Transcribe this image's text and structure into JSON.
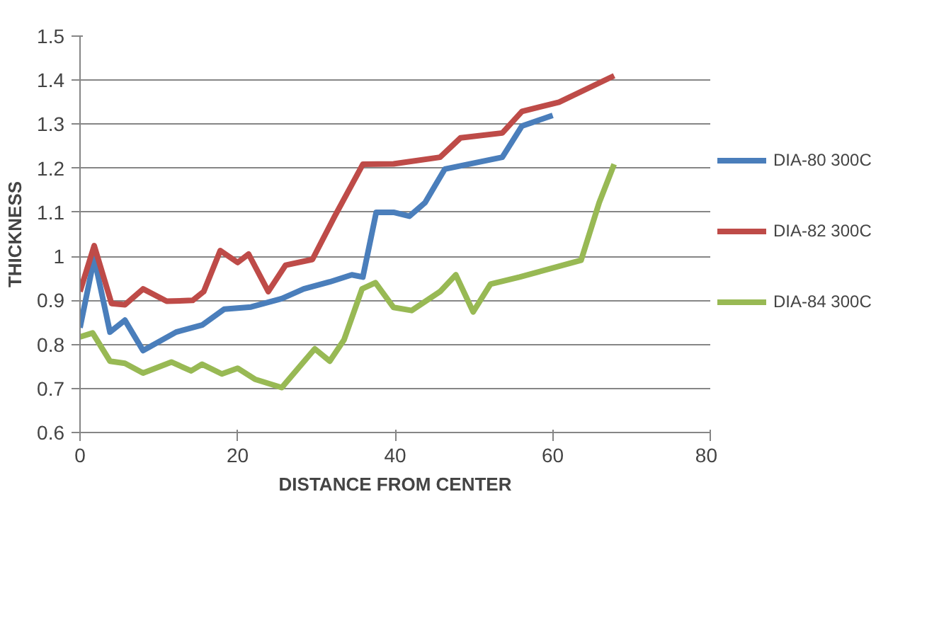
{
  "chart_data": {
    "type": "line",
    "xlabel": "DISTANCE FROM CENTER",
    "ylabel": "THICKNESS",
    "xlim": [
      0,
      80
    ],
    "xticks": [
      0,
      20,
      40,
      60,
      80
    ],
    "ylim": [
      0.6,
      1.5
    ],
    "yticks": [
      0.6,
      0.7,
      0.8,
      0.9,
      1,
      1.1,
      1.2,
      1.3,
      1.4,
      1.5
    ],
    "grid": "y",
    "legend": "right",
    "marker": "none",
    "line_style": "solid",
    "series": [
      {
        "name": "DIA-80 300C",
        "color": "#4a7ebb",
        "x": [
          0,
          1.8,
          3.8,
          5.7,
          8,
          12.2,
          15.5,
          18.3,
          21.7,
          25.6,
          28.4,
          31.7,
          34.5,
          35.9,
          37.6,
          39.8,
          41.8,
          43.8,
          46.3,
          53.6,
          56.1,
          60
        ],
        "values": [
          0.838,
          0.996,
          0.828,
          0.855,
          0.786,
          0.828,
          0.844,
          0.88,
          0.885,
          0.904,
          0.926,
          0.942,
          0.958,
          0.953,
          1.1,
          1.1,
          1.091,
          1.122,
          1.198,
          1.225,
          1.296,
          1.32
        ]
      },
      {
        "name": "DIA-82 300C",
        "color": "#be4b48",
        "x": [
          0,
          1.8,
          4,
          5.7,
          8,
          11,
          14.3,
          15.7,
          17.8,
          20,
          21.4,
          23.9,
          26.1,
          29.5,
          32.3,
          35.9,
          39.8,
          45.7,
          48.3,
          53.6,
          56.1,
          60.8,
          67.8
        ],
        "values": [
          0.92,
          1.024,
          0.893,
          0.89,
          0.926,
          0.898,
          0.9,
          0.92,
          1.013,
          0.986,
          1.005,
          0.92,
          0.98,
          0.993,
          1.09,
          1.209,
          1.21,
          1.225,
          1.269,
          1.28,
          1.329,
          1.35,
          1.41
        ]
      },
      {
        "name": "DIA-84 300C",
        "color": "#98b954",
        "x": [
          0,
          1.6,
          3.8,
          5.7,
          8,
          11.6,
          14.1,
          15.5,
          18,
          20,
          22.2,
          25.6,
          29.8,
          31.7,
          33.5,
          35.8,
          37.5,
          39.8,
          42.1,
          45.7,
          47.7,
          49.9,
          52.1,
          55.8,
          63.6,
          65.9,
          67.8
        ],
        "values": [
          0.817,
          0.826,
          0.762,
          0.757,
          0.735,
          0.76,
          0.74,
          0.755,
          0.733,
          0.746,
          0.721,
          0.702,
          0.79,
          0.762,
          0.81,
          0.926,
          0.94,
          0.884,
          0.877,
          0.92,
          0.958,
          0.874,
          0.937,
          0.953,
          0.991,
          1.122,
          1.209
        ]
      }
    ]
  }
}
